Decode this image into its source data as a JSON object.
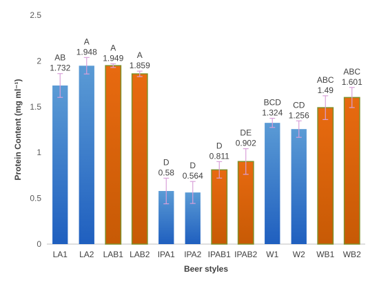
{
  "colors": {
    "blue_top": "#5b9bd5",
    "blue_bottom": "#1f5fbf",
    "orange_top": "#e86a10",
    "orange_bottom": "#c75a05",
    "bar_edge_orange": "#7f8f2a",
    "error_bar": "#d9a0d9",
    "axis": "#bfbfbf",
    "text": "#404040"
  },
  "chart_data": {
    "type": "bar",
    "categories": [
      "LA1",
      "LA2",
      "LAB1",
      "LAB2",
      "IPA1",
      "IPA2",
      "IPAB1",
      "IPAB2",
      "W1",
      "W2",
      "WB1",
      "WB2"
    ],
    "values": [
      1.732,
      1.948,
      1.949,
      1.859,
      0.58,
      0.564,
      0.811,
      0.902,
      1.324,
      1.256,
      1.49,
      1.601
    ],
    "value_labels": [
      "1.732",
      "1.948",
      "1.949",
      "1.859",
      "0.58",
      "0.564",
      "0.811",
      "0.902",
      "1.324",
      "1.256",
      "1.49",
      "1.601"
    ],
    "errors": [
      0.13,
      0.09,
      0.02,
      0.03,
      0.14,
      0.12,
      0.09,
      0.14,
      0.05,
      0.09,
      0.13,
      0.11
    ],
    "significance_letters": [
      "AB",
      "A",
      "A",
      "A",
      "D",
      "D",
      "D",
      "DE",
      "BCD",
      "CD",
      "ABC",
      "ABC"
    ],
    "bar_colors": [
      "blue",
      "blue",
      "orange",
      "orange",
      "blue",
      "blue",
      "orange",
      "orange",
      "blue",
      "blue",
      "orange",
      "orange"
    ],
    "title": "",
    "xlabel": "Beer styles",
    "ylabel": "Protein Content (mg ml⁻¹)",
    "ylim": [
      0,
      2.5
    ],
    "yticks": [
      0,
      0.5,
      1,
      1.5,
      2,
      2.5
    ],
    "ytick_labels": [
      "0",
      "0.5",
      "1",
      "1.5",
      "2",
      "2.5"
    ],
    "grid": false,
    "legend": "none"
  }
}
